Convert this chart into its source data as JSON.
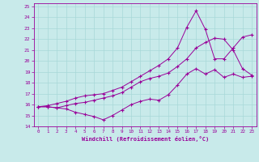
{
  "xlabel": "Windchill (Refroidissement éolien,°C)",
  "line_color": "#990099",
  "bg_color": "#c8eaea",
  "grid_color": "#a8d8d8",
  "xlim": [
    -0.5,
    23.5
  ],
  "ylim": [
    14,
    25.3
  ],
  "xticks": [
    0,
    1,
    2,
    3,
    4,
    5,
    6,
    7,
    8,
    9,
    10,
    11,
    12,
    13,
    14,
    15,
    16,
    17,
    18,
    19,
    20,
    21,
    22,
    23
  ],
  "yticks": [
    14,
    15,
    16,
    17,
    18,
    19,
    20,
    21,
    22,
    23,
    24,
    25
  ],
  "line1_x": [
    0,
    1,
    2,
    3,
    4,
    5,
    6,
    7,
    8,
    9,
    10,
    11,
    12,
    13,
    14,
    15,
    16,
    17,
    18,
    19,
    20,
    21,
    22,
    23
  ],
  "line1_y": [
    15.8,
    15.8,
    15.7,
    15.6,
    15.3,
    15.1,
    14.9,
    14.6,
    15.0,
    15.5,
    16.0,
    16.3,
    16.5,
    16.4,
    16.9,
    17.8,
    18.8,
    19.3,
    18.8,
    19.2,
    18.5,
    18.8,
    18.5,
    18.6
  ],
  "line2_x": [
    0,
    1,
    2,
    3,
    4,
    5,
    6,
    7,
    8,
    9,
    10,
    11,
    12,
    13,
    14,
    15,
    16,
    17,
    18,
    19,
    20,
    21,
    22,
    23
  ],
  "line2_y": [
    15.8,
    15.8,
    15.7,
    15.9,
    16.1,
    16.2,
    16.4,
    16.6,
    16.8,
    17.1,
    17.6,
    18.1,
    18.4,
    18.6,
    18.9,
    19.5,
    20.2,
    21.2,
    21.7,
    22.1,
    22.0,
    21.0,
    19.3,
    18.7
  ],
  "line3_x": [
    0,
    1,
    2,
    3,
    4,
    5,
    6,
    7,
    8,
    9,
    10,
    11,
    12,
    13,
    14,
    15,
    16,
    17,
    18,
    19,
    20,
    21,
    22,
    23
  ],
  "line3_y": [
    15.8,
    15.9,
    16.1,
    16.3,
    16.6,
    16.8,
    16.9,
    17.0,
    17.3,
    17.6,
    18.1,
    18.6,
    19.1,
    19.6,
    20.2,
    21.2,
    23.1,
    24.6,
    22.9,
    20.2,
    20.2,
    21.2,
    22.2,
    22.4
  ]
}
